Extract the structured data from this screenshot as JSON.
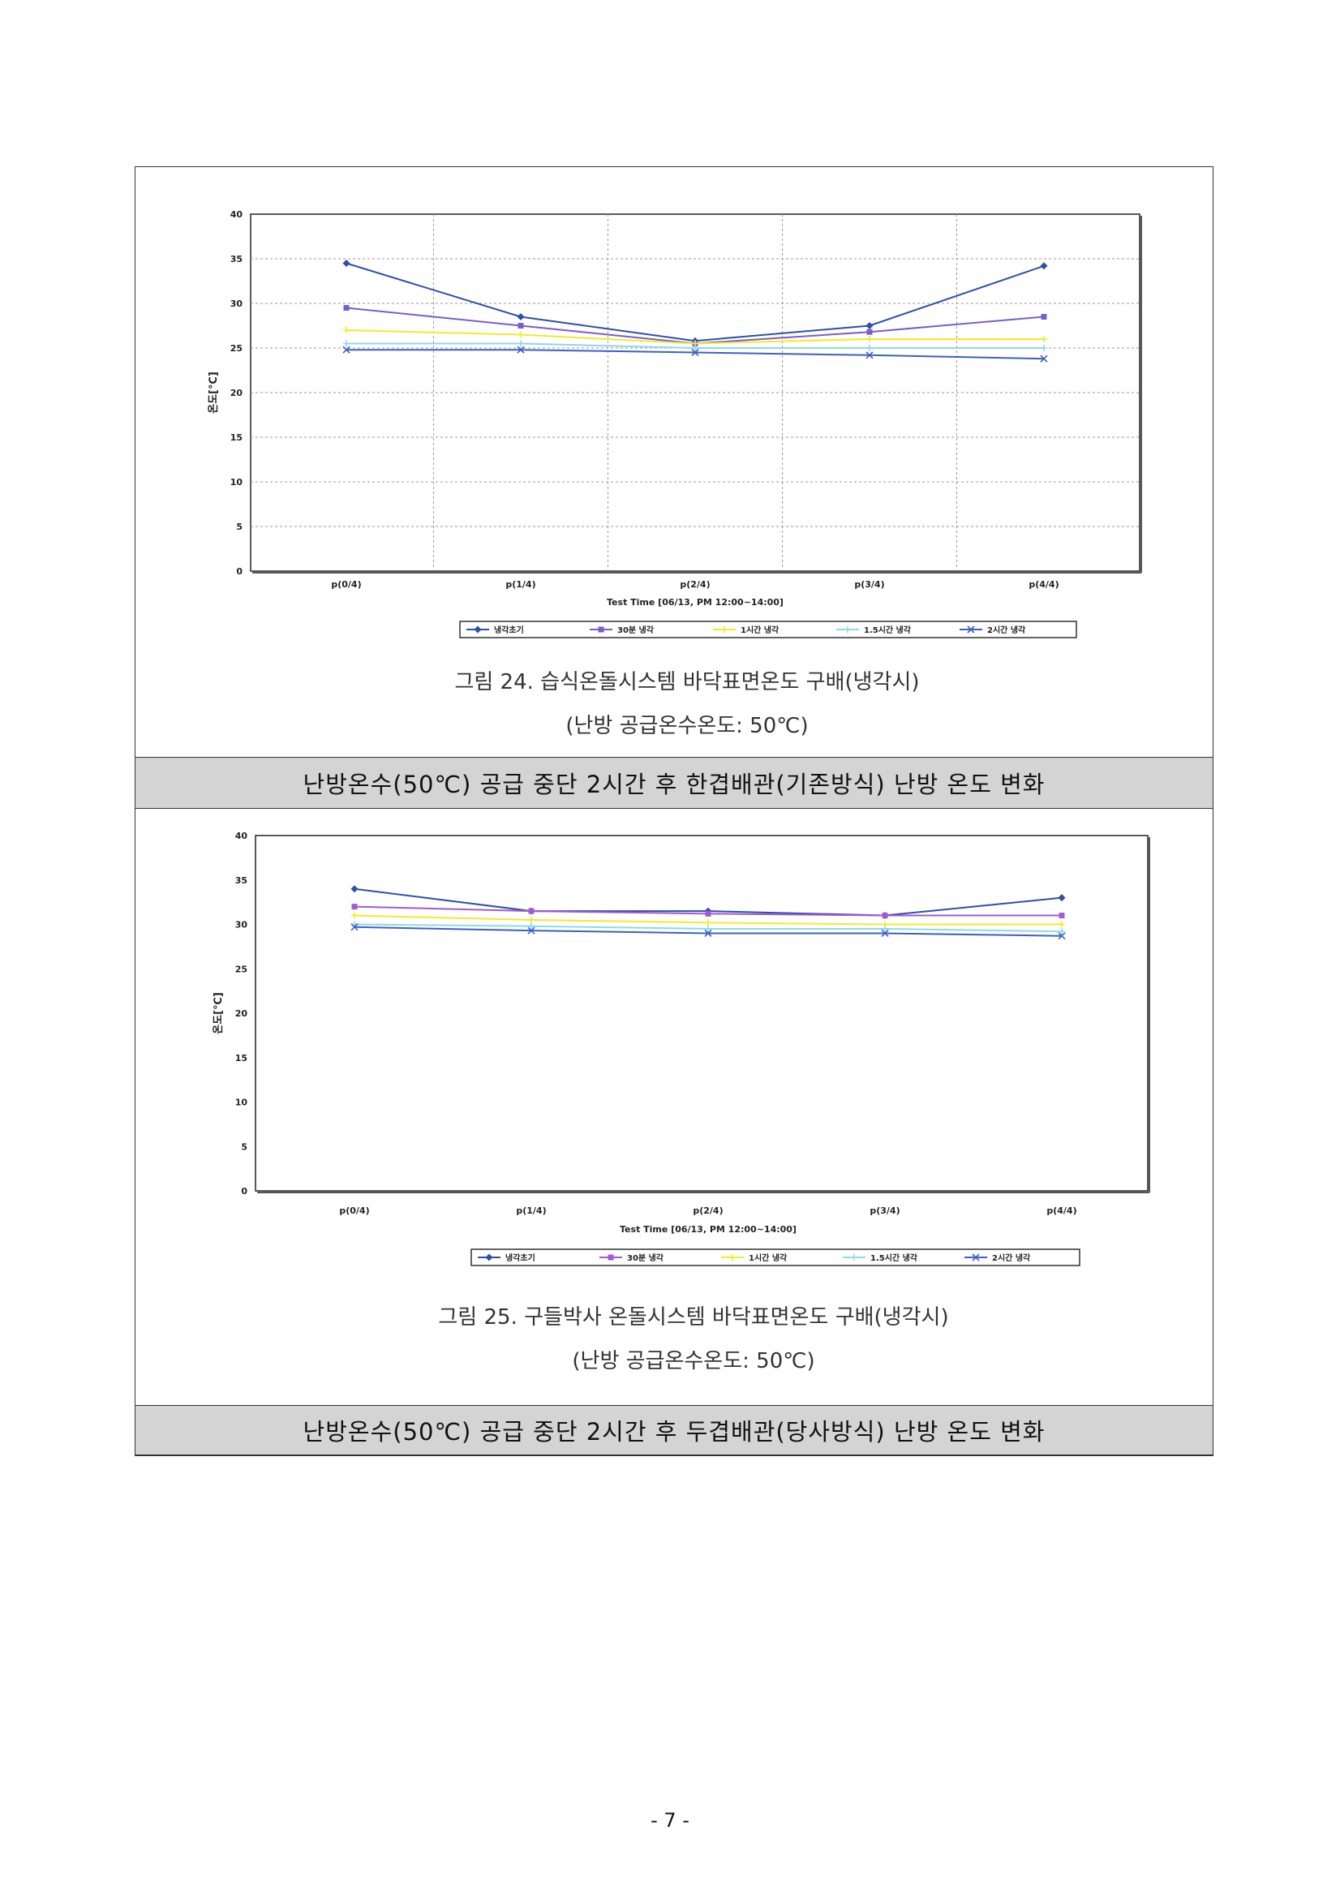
{
  "charts": [
    {
      "figure_caption_line1": "그림 24. 습식온돌시스템 바닥표면온도 구배(냉각시)",
      "figure_caption_line2": "(난방 공급온수온도: 50℃)",
      "bar_caption": "난방온수(50℃) 공급 중단 2시간 후 한겹배관(기존방식) 난방 온도 변화"
    },
    {
      "figure_caption_line1": "그림 25. 구들박사 온돌시스템 바닥표면온도 구배(냉각시)",
      "figure_caption_line2": "(난방 공급온수온도: 50℃)",
      "bar_caption": "난방온수(50℃) 공급 중단 2시간 후 두겹배관(당사방식) 난방 온도 변화"
    }
  ],
  "page_number": "- 7 -",
  "chart_data": [
    {
      "type": "line",
      "xlabel": "Test Time [06/13, PM 12:00~14:00]",
      "ylabel": "온도[℃]",
      "categories": [
        "p(0/4)",
        "p(1/4)",
        "p(2/4)",
        "p(3/4)",
        "p(4/4)"
      ],
      "ylim": [
        0,
        40
      ],
      "yticks": [
        "0",
        "5",
        "10",
        "15",
        "20",
        "25",
        "30",
        "35",
        "40"
      ],
      "grid": true,
      "legend_position": "bottom",
      "series": [
        {
          "name": "냉각초기",
          "color": "#2f4fa8",
          "values": [
            34.5,
            28.5,
            25.8,
            27.5,
            34.2
          ]
        },
        {
          "name": "30분 냉각",
          "color": "#7a5ccc",
          "values": [
            29.5,
            27.5,
            25.5,
            26.8,
            28.5
          ]
        },
        {
          "name": "1시간 냉각",
          "color": "#f2ea2a",
          "values": [
            27.0,
            26.5,
            25.5,
            26.0,
            26.0
          ]
        },
        {
          "name": "1.5시간 냉각",
          "color": "#8fd8ec",
          "values": [
            25.5,
            25.5,
            25.0,
            25.0,
            25.0
          ]
        },
        {
          "name": "2시간 냉각",
          "color": "#3d5fc2",
          "values": [
            24.8,
            24.8,
            24.5,
            24.2,
            23.8
          ]
        }
      ]
    },
    {
      "type": "line",
      "xlabel": "Test Time [06/13, PM 12:00~14:00]",
      "ylabel": "온도[℃]",
      "categories": [
        "p(0/4)",
        "p(1/4)",
        "p(2/4)",
        "p(3/4)",
        "p(4/4)"
      ],
      "ylim": [
        0,
        40
      ],
      "yticks": [
        "0",
        "5",
        "10",
        "15",
        "20",
        "25",
        "30",
        "35",
        "40"
      ],
      "grid": false,
      "legend_position": "bottom",
      "series": [
        {
          "name": "냉각초기",
          "color": "#2f4fa8",
          "values": [
            34.0,
            31.5,
            31.5,
            31.0,
            33.0
          ]
        },
        {
          "name": "30분 냉각",
          "color": "#a15bd0",
          "values": [
            32.0,
            31.5,
            31.2,
            31.0,
            31.0
          ]
        },
        {
          "name": "1시간 냉각",
          "color": "#f2ea2a",
          "values": [
            31.0,
            30.5,
            30.2,
            30.0,
            30.0
          ]
        },
        {
          "name": "1.5시간 냉각",
          "color": "#8fd8ec",
          "values": [
            30.0,
            29.8,
            29.5,
            29.5,
            29.2
          ]
        },
        {
          "name": "2시간 냉각",
          "color": "#3d5fc2",
          "values": [
            29.7,
            29.3,
            29.0,
            29.0,
            28.7
          ]
        }
      ]
    }
  ]
}
